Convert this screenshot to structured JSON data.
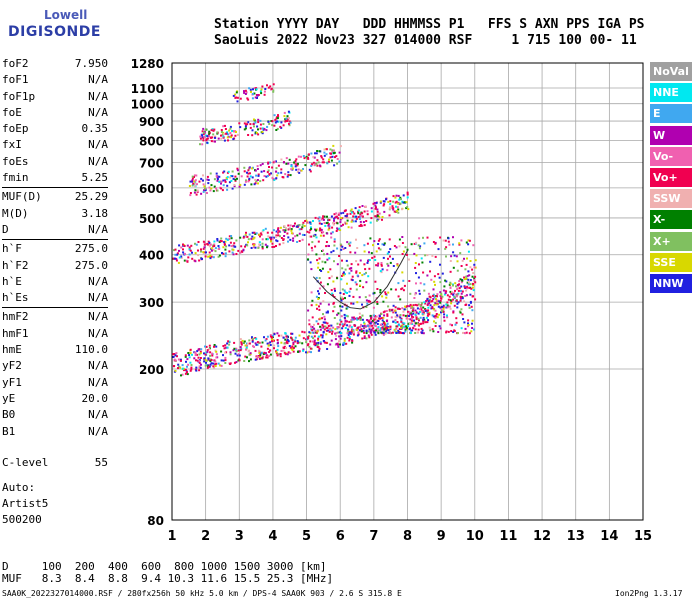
{
  "logo": {
    "top": "Lowell",
    "bottom": "DIGISONDE"
  },
  "header": {
    "line1": "Station YYYY DAY   DDD HHMMSS P1   FFS S AXN PPS IGA PS",
    "line2": "SaoLuis 2022 Nov23 327 014000 RSF     1 715 100 00- 11"
  },
  "params": [
    {
      "label": "foF2",
      "value": "7.950"
    },
    {
      "label": "foF1",
      "value": "N/A"
    },
    {
      "label": "foF1p",
      "value": "N/A"
    },
    {
      "label": "foE",
      "value": "N/A"
    },
    {
      "label": "foEp",
      "value": "0.35"
    },
    {
      "label": "fxI",
      "value": "N/A"
    },
    {
      "label": "foEs",
      "value": "N/A"
    },
    {
      "label": "fmin",
      "value": "5.25"
    },
    {
      "sep": true
    },
    {
      "label": "MUF(D)",
      "value": "25.29"
    },
    {
      "label": "M(D)",
      "value": "3.18"
    },
    {
      "label": "D",
      "value": "N/A"
    },
    {
      "sep": true
    },
    {
      "label": "h`F",
      "value": "275.0"
    },
    {
      "label": "h`F2",
      "value": "275.0"
    },
    {
      "label": "h`E",
      "value": "N/A"
    },
    {
      "label": "h`Es",
      "value": "N/A"
    },
    {
      "sep": true
    },
    {
      "label": "hmF2",
      "value": "N/A"
    },
    {
      "label": "hmF1",
      "value": "N/A"
    },
    {
      "label": "hmE",
      "value": "110.0"
    },
    {
      "label": "yF2",
      "value": "N/A"
    },
    {
      "label": "yF1",
      "value": "N/A"
    },
    {
      "label": "yE",
      "value": "20.0"
    },
    {
      "label": "B0",
      "value": "N/A"
    },
    {
      "label": "B1",
      "value": "N/A"
    }
  ],
  "clevel": {
    "label": "C-level",
    "value": "55"
  },
  "auto": [
    "Auto:",
    "Artist5",
    "500200"
  ],
  "bottom": {
    "d_row": "D     100  200  400  600  800 1000 1500 3000 [km]",
    "muf_row": "MUF   8.3  8.4  8.8  9.4 10.3 11.6 15.5 25.3 [MHz]"
  },
  "footer": {
    "left": "SAA0K_2022327014000.RSF / 280fx256h 50 kHz 5.0 km / DPS-4 SAA0K 903 / 2.6 S 315.8 E",
    "right": "Ion2Png 1.3.17"
  },
  "legend": [
    {
      "label": "NoVal",
      "color": "#a0a0a0"
    },
    {
      "label": "NNE",
      "color": "#00e8f0"
    },
    {
      "label": "E",
      "color": "#40a8f0"
    },
    {
      "label": "W",
      "color": "#b000b0"
    },
    {
      "label": "Vo-",
      "color": "#f060b0"
    },
    {
      "label": "Vo+",
      "color": "#f00050"
    },
    {
      "label": "SSW",
      "color": "#f0b0b0"
    },
    {
      "label": "X-",
      "color": "#008000"
    },
    {
      "label": "X+",
      "color": "#80c060"
    },
    {
      "label": "SSE",
      "color": "#d8d800"
    },
    {
      "label": "NNW",
      "color": "#2020e0"
    }
  ],
  "chart_data": {
    "type": "scatter",
    "title": "",
    "xlabel": "",
    "ylabel": "",
    "xlim": [
      1,
      15
    ],
    "ylim": [
      80,
      1280
    ],
    "y_scale": "log",
    "grid": true,
    "x_ticks": [
      1,
      2,
      3,
      4,
      5,
      6,
      7,
      8,
      9,
      10,
      11,
      12,
      13,
      14,
      15
    ],
    "y_ticks": [
      80,
      200,
      300,
      400,
      500,
      600,
      700,
      800,
      900,
      1000,
      1100,
      1280
    ],
    "traces": [
      {
        "name": "1st-hop F trace",
        "x": [
          1.0,
          2.0,
          3.0,
          4.0,
          5.0,
          6.0,
          7.0,
          8.0,
          8.5,
          9.0,
          9.5,
          10.0
        ],
        "y": [
          205,
          215,
          225,
          232,
          238,
          248,
          262,
          275,
          285,
          300,
          320,
          355
        ]
      },
      {
        "name": "2nd-hop F trace",
        "x": [
          1.0,
          2.0,
          3.0,
          4.0,
          5.0,
          6.0,
          7.0,
          7.5,
          8.0
        ],
        "y": [
          400,
          415,
          430,
          448,
          468,
          492,
          520,
          540,
          560
        ]
      },
      {
        "name": "3rd-hop F trace",
        "x": [
          1.5,
          2.5,
          3.5,
          4.5,
          5.0,
          5.5,
          6.0
        ],
        "y": [
          610,
          630,
          655,
          685,
          700,
          720,
          745
        ]
      },
      {
        "name": "4th-hop F trace",
        "x": [
          1.8,
          2.5,
          3.0,
          3.5,
          4.0,
          4.5
        ],
        "y": [
          820,
          840,
          855,
          875,
          895,
          920
        ]
      },
      {
        "name": "5th-hop F trace",
        "x": [
          2.8,
          3.2,
          3.6,
          4.0
        ],
        "y": [
          1050,
          1065,
          1080,
          1100
        ]
      }
    ],
    "spread_region": {
      "x": [
        5.0,
        10.0
      ],
      "y": [
        250,
        450
      ]
    },
    "o_profile": {
      "x": [
        5.2,
        5.6,
        6.0,
        6.3,
        6.6,
        7.0,
        7.4,
        7.8,
        8.0
      ],
      "y": [
        350,
        320,
        300,
        290,
        288,
        300,
        330,
        380,
        410
      ]
    },
    "colors": [
      "#a0a0a0",
      "#00e8f0",
      "#40a8f0",
      "#b000b0",
      "#f060b0",
      "#f00050",
      "#f0b0b0",
      "#008000",
      "#80c060",
      "#d8d800",
      "#2020e0"
    ]
  }
}
